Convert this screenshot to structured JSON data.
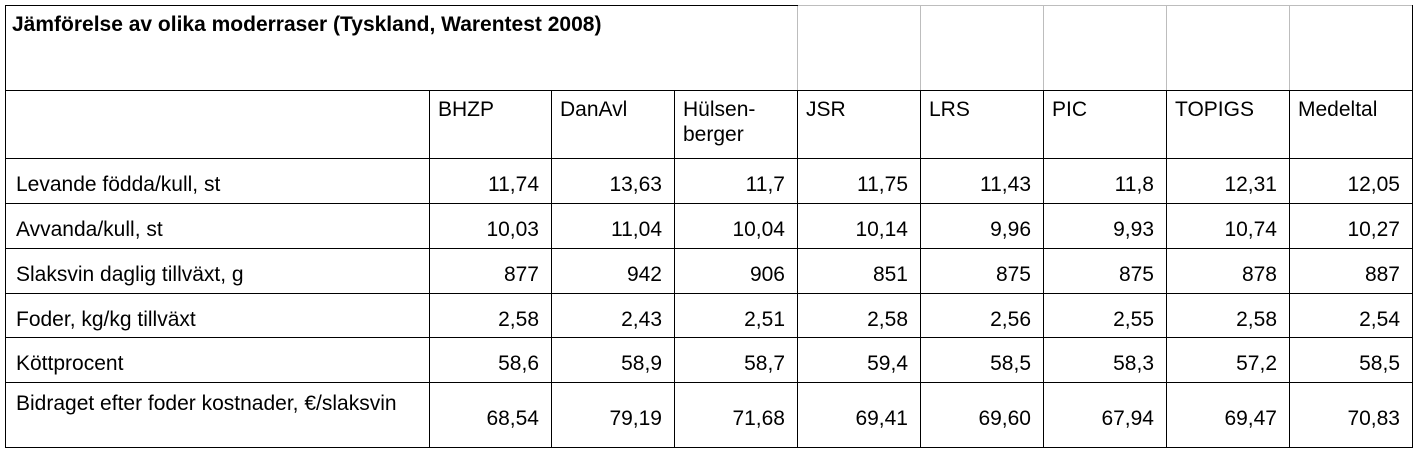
{
  "title": "Jämförelse av olika moderraser (Tyskland, Warentest 2008)",
  "columns": [
    "BHZP",
    "DanAvl",
    "Hülsen-\nberger",
    "JSR",
    "LRS",
    "PIC",
    "TOPIGS",
    "Medeltal"
  ],
  "rows": [
    {
      "label": "Levande födda/kull,  st",
      "values": [
        "11,74",
        "13,63",
        "11,7",
        "11,75",
        "11,43",
        "11,8",
        "12,31",
        "12,05"
      ]
    },
    {
      "label": "Avvanda/kull,  st",
      "values": [
        "10,03",
        "11,04",
        "10,04",
        "10,14",
        "9,96",
        "9,93",
        "10,74",
        "10,27"
      ]
    },
    {
      "label": "Slaksvin daglig tillväxt, g",
      "values": [
        "877",
        "942",
        "906",
        "851",
        "875",
        "875",
        "878",
        "887"
      ]
    },
    {
      "label": "Foder, kg/kg tillväxt",
      "values": [
        "2,58",
        "2,43",
        "2,51",
        "2,58",
        "2,56",
        "2,55",
        "2,58",
        "2,54"
      ]
    },
    {
      "label": "Köttprocent",
      "values": [
        "58,6",
        "58,9",
        "58,7",
        "59,4",
        "58,5",
        "58,3",
        "57,2",
        "58,5"
      ]
    },
    {
      "label": "Bidraget efter foder kostnader, €/slaksvin",
      "values": [
        "68,54",
        "79,19",
        "71,68",
        "69,41",
        "69,60",
        "67,94",
        "69,47",
        "70,83"
      ]
    }
  ]
}
